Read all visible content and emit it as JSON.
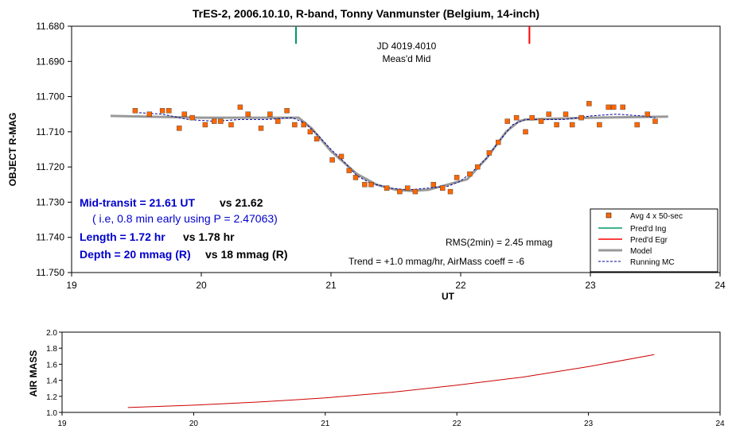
{
  "chart_data": [
    {
      "type": "scatter",
      "title": "TrES-2, 2006.10.10, R-band, Tonny Vanmunster (Belgium, 14-inch)",
      "xlabel": "UT",
      "ylabel": "OBJECT R-MAG",
      "xlim": [
        19,
        24
      ],
      "ylim": [
        11.68,
        11.75
      ],
      "y_inverted": true,
      "xticks": [
        "19",
        "20",
        "21",
        "22",
        "23",
        "24"
      ],
      "yticks": [
        "11.680",
        "11.690",
        "11.700",
        "11.710",
        "11.720",
        "11.730",
        "11.740",
        "11.750"
      ],
      "grid": false,
      "legend_position": "bottom-right",
      "marker_color": "#ff6600",
      "model_color": "#999999",
      "ingress_color": "#009966",
      "egress_color": "#ff0000",
      "running_color": "#000099",
      "note_color": "#0000cc",
      "series": [
        {
          "name": "Avg 4 x 50-sec",
          "x": [
            19.49,
            19.6,
            19.7,
            19.75,
            19.83,
            19.87,
            19.93,
            20.03,
            20.1,
            20.15,
            20.23,
            20.3,
            20.36,
            20.46,
            20.53,
            20.59,
            20.66,
            20.72,
            20.79,
            20.84,
            20.89,
            21.01,
            21.08,
            21.14,
            21.19,
            21.26,
            21.31,
            21.43,
            21.53,
            21.59,
            21.65,
            21.79,
            21.86,
            21.92,
            21.97,
            22.07,
            22.13,
            22.22,
            22.29,
            22.36,
            22.43,
            22.5,
            22.55,
            22.62,
            22.68,
            22.74,
            22.81,
            22.86,
            22.93,
            22.99,
            23.07,
            23.14,
            23.18,
            23.25,
            23.36,
            23.44,
            23.5
          ],
          "y": [
            11.704,
            11.705,
            11.704,
            11.704,
            11.709,
            11.705,
            11.706,
            11.708,
            11.707,
            11.707,
            11.708,
            11.703,
            11.705,
            11.709,
            11.705,
            11.707,
            11.704,
            11.708,
            11.708,
            11.71,
            11.712,
            11.718,
            11.717,
            11.721,
            11.723,
            11.725,
            11.725,
            11.726,
            11.727,
            11.726,
            11.727,
            11.725,
            11.726,
            11.727,
            11.723,
            11.722,
            11.72,
            11.716,
            11.713,
            11.707,
            11.706,
            11.71,
            11.706,
            11.707,
            11.705,
            11.708,
            11.705,
            11.708,
            11.706,
            11.702,
            11.708,
            11.703,
            11.703,
            11.703,
            11.708,
            11.705,
            11.707
          ]
        },
        {
          "name": "Pred'd Ing",
          "x": [
            20.73,
            20.73
          ],
          "y": [
            11.68,
            11.685
          ]
        },
        {
          "name": "Pred'd Egr",
          "x": [
            22.53,
            22.53
          ],
          "y": [
            11.68,
            11.685
          ]
        },
        {
          "name": "Model",
          "x": [
            19.3,
            20.0,
            20.75,
            20.85,
            21.0,
            21.2,
            21.35,
            21.5,
            21.62,
            21.75,
            21.9,
            22.05,
            22.2,
            22.35,
            22.45,
            22.5,
            23.0,
            23.6
          ],
          "y": [
            11.7055,
            11.706,
            11.706,
            11.709,
            11.7155,
            11.722,
            11.725,
            11.7265,
            11.7268,
            11.7265,
            11.725,
            11.7235,
            11.7175,
            11.71,
            11.707,
            11.7065,
            11.706,
            11.7057
          ]
        },
        {
          "name": "Running MC",
          "x": [
            19.49,
            19.7,
            19.9,
            20.1,
            20.3,
            20.5,
            20.7,
            20.8,
            20.9,
            21.0,
            21.1,
            21.2,
            21.3,
            21.45,
            21.6,
            21.75,
            21.9,
            22.0,
            22.1,
            22.2,
            22.3,
            22.4,
            22.5,
            22.6,
            22.8,
            23.0,
            23.2,
            23.4,
            23.5
          ],
          "y": [
            11.7045,
            11.705,
            11.7065,
            11.707,
            11.7065,
            11.7065,
            11.706,
            11.7075,
            11.711,
            11.715,
            11.7185,
            11.7225,
            11.7245,
            11.726,
            11.7265,
            11.726,
            11.7255,
            11.724,
            11.721,
            11.7175,
            11.7125,
            11.708,
            11.7065,
            11.7065,
            11.7065,
            11.7055,
            11.705,
            11.7055,
            11.706
          ]
        }
      ],
      "annotations": {
        "jd": "JD 4019.4010",
        "measd_mid": "Meas'd Mid",
        "mid_transit": "Mid-transit = 21.61 UT",
        "mid_transit_pred": "vs 21.62",
        "early_note": "( i.e, 0.8 min early using P = 2.47063)",
        "length": "Length = 1.72 hr",
        "length_pred": "vs 1.78 hr",
        "depth": "Depth = 20 mmag (R)",
        "depth_pred": "vs 18 mmag (R)",
        "rms": "RMS(2min) = 2.45 mmag",
        "trend": "Trend = +1.0 mmag/hr, AirMass coeff = -6"
      }
    },
    {
      "type": "line",
      "title": "",
      "xlabel": "",
      "ylabel": "AIR MASS",
      "xlim": [
        19,
        24
      ],
      "ylim": [
        1.0,
        2.0
      ],
      "xticks": [
        "19",
        "20",
        "21",
        "22",
        "23",
        "24"
      ],
      "yticks": [
        "1.0",
        "1.2",
        "1.4",
        "1.6",
        "1.8",
        "2.0"
      ],
      "line_color": "#cc0000",
      "series": [
        {
          "x": [
            19.5,
            20.0,
            20.5,
            21.0,
            21.5,
            22.0,
            22.5,
            23.0,
            23.5
          ],
          "y": [
            1.06,
            1.09,
            1.13,
            1.18,
            1.25,
            1.34,
            1.44,
            1.57,
            1.72
          ]
        }
      ]
    }
  ]
}
